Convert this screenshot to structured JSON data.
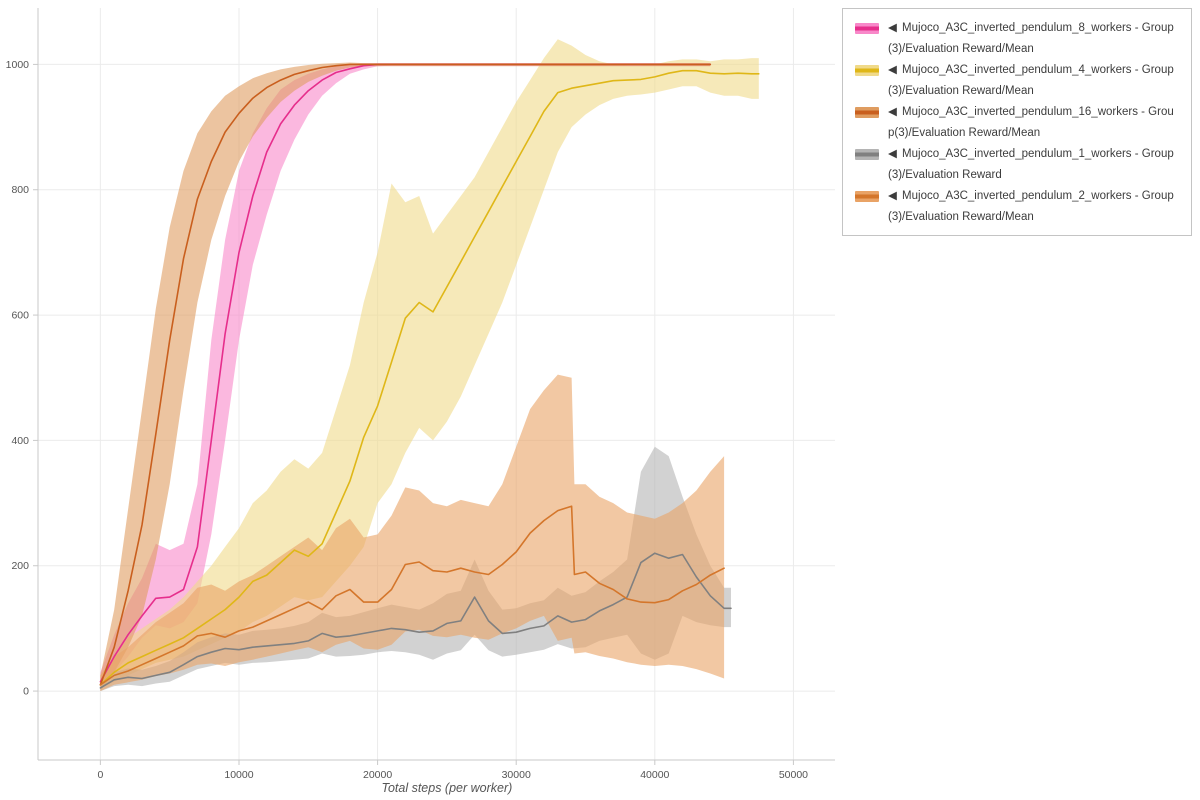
{
  "legend": {
    "toggle_glyph": "◀"
  },
  "chart_data": {
    "type": "line",
    "title": "",
    "xlabel": "Total steps (per worker)",
    "ylabel": "",
    "grid": true,
    "legend_position": "top-right-outside",
    "xlim": [
      -4500,
      53000
    ],
    "ylim": [
      -110,
      1090
    ],
    "x_ticks": [
      0,
      10000,
      20000,
      30000,
      40000,
      50000
    ],
    "x_tick_labels": [
      "0",
      "10000",
      "20000",
      "30000",
      "40000",
      "50000"
    ],
    "y_ticks": [
      0,
      200,
      400,
      600,
      800,
      1000
    ],
    "y_tick_labels": [
      "0",
      "200",
      "400",
      "600",
      "800",
      "1000"
    ],
    "axis_color": "#c9c9c9",
    "grid_color": "#ebebeb",
    "tick_label_color": "#555555",
    "series": [
      {
        "name": "Mujoco_A3C_inverted_pendulum_8_workers - Group(3)/Evaluation Reward/Mean",
        "color": "#e62e8c",
        "band_color": "#f888c9",
        "x": [
          0,
          1000,
          2000,
          3000,
          4000,
          5000,
          6000,
          7000,
          8000,
          9000,
          10000,
          11000,
          12000,
          13000,
          14000,
          15000,
          16000,
          17000,
          18000,
          19000,
          20000,
          21000,
          22000,
          23000,
          24000,
          25000,
          26000,
          27000,
          28000,
          29000,
          30000,
          31000,
          32000,
          33000,
          34000,
          35000,
          36000,
          37000,
          38000,
          39000,
          40000,
          41000,
          42000,
          43000,
          44000
        ],
        "y": [
          15,
          55,
          90,
          120,
          148,
          150,
          162,
          230,
          400,
          570,
          700,
          790,
          860,
          905,
          935,
          958,
          975,
          987,
          993,
          998,
          1000,
          1000,
          1000,
          1000,
          1000,
          1000,
          1000,
          1000,
          1000,
          1000,
          1000,
          1000,
          1000,
          1000,
          1000,
          1000,
          1000,
          1000,
          1000,
          1000,
          1000,
          1000,
          1000,
          1000,
          1000
        ],
        "lower": [
          5,
          30,
          55,
          85,
          105,
          100,
          110,
          140,
          250,
          400,
          560,
          680,
          760,
          830,
          880,
          920,
          950,
          970,
          985,
          992,
          997,
          998,
          998,
          998,
          998,
          998,
          998,
          998,
          998,
          998,
          998,
          998,
          998,
          998,
          998,
          998,
          998,
          998,
          998,
          998,
          998,
          998,
          998,
          998,
          998
        ],
        "upper": [
          30,
          90,
          140,
          180,
          235,
          225,
          235,
          330,
          560,
          720,
          830,
          890,
          930,
          960,
          975,
          985,
          992,
          997,
          1000,
          1002,
          1002,
          1002,
          1002,
          1002,
          1002,
          1002,
          1002,
          1002,
          1002,
          1002,
          1002,
          1002,
          1002,
          1002,
          1002,
          1002,
          1002,
          1002,
          1002,
          1002,
          1002,
          1002,
          1002,
          1002,
          1002
        ]
      },
      {
        "name": "Mujoco_A3C_inverted_pendulum_4_workers - Group(3)/Evaluation Reward/Mean",
        "color": "#dfb718",
        "band_color": "#f0da8a",
        "x": [
          0,
          1000,
          2000,
          3000,
          4000,
          5000,
          6000,
          7000,
          8000,
          9000,
          10000,
          11000,
          12000,
          13000,
          14000,
          15000,
          16000,
          17000,
          18000,
          19000,
          20000,
          21000,
          22000,
          23000,
          24000,
          25000,
          26000,
          27000,
          28000,
          29000,
          30000,
          31000,
          32000,
          33000,
          34000,
          35000,
          36000,
          37000,
          38000,
          39000,
          40000,
          41000,
          42000,
          43000,
          44000,
          45000,
          46000,
          47000,
          47500
        ],
        "y": [
          10,
          30,
          45,
          55,
          65,
          75,
          85,
          100,
          115,
          130,
          150,
          175,
          185,
          205,
          225,
          215,
          235,
          285,
          335,
          405,
          455,
          525,
          595,
          620,
          605,
          645,
          685,
          725,
          765,
          805,
          845,
          885,
          925,
          955,
          962,
          966,
          970,
          974,
          975,
          976,
          980,
          986,
          990,
          990,
          986,
          985,
          986,
          985,
          985
        ],
        "lower": [
          5,
          15,
          25,
          35,
          45,
          50,
          55,
          65,
          75,
          85,
          95,
          110,
          120,
          135,
          150,
          145,
          150,
          175,
          200,
          230,
          300,
          330,
          380,
          420,
          400,
          430,
          470,
          520,
          570,
          620,
          680,
          740,
          800,
          860,
          900,
          920,
          935,
          945,
          950,
          952,
          955,
          960,
          965,
          965,
          955,
          950,
          950,
          945,
          945
        ],
        "upper": [
          25,
          55,
          85,
          100,
          115,
          130,
          150,
          175,
          200,
          230,
          260,
          300,
          320,
          350,
          370,
          355,
          380,
          450,
          520,
          620,
          700,
          810,
          780,
          790,
          730,
          760,
          790,
          820,
          860,
          900,
          940,
          975,
          1010,
          1040,
          1030,
          1015,
          1005,
          1000,
          998,
          998,
          1000,
          1005,
          1008,
          1008,
          1005,
          1008,
          1008,
          1010,
          1010
        ]
      },
      {
        "name": "Mujoco_A3C_inverted_pendulum_16_workers - Group(3)/Evaluation Reward/Mean",
        "color": "#c95f1e",
        "band_color": "#df9c60",
        "x": [
          0,
          1000,
          2000,
          3000,
          4000,
          5000,
          6000,
          7000,
          8000,
          9000,
          10000,
          11000,
          12000,
          13000,
          14000,
          15000,
          16000,
          17000,
          18000,
          19000,
          20000,
          21000,
          22000,
          23000,
          24000,
          25000,
          26000,
          27000,
          28000,
          29000,
          30000,
          31000,
          32000,
          33000,
          34000,
          35000,
          36000,
          37000,
          38000,
          39000,
          40000,
          41000,
          42000,
          43000,
          44000
        ],
        "y": [
          10,
          70,
          160,
          265,
          410,
          560,
          690,
          785,
          845,
          892,
          922,
          946,
          963,
          975,
          984,
          990,
          995,
          998,
          1000,
          1000,
          1000,
          1000,
          1000,
          1000,
          1000,
          1000,
          1000,
          1000,
          1000,
          1000,
          1000,
          1000,
          1000,
          1000,
          1000,
          1000,
          1000,
          1000,
          1000,
          1000,
          1000,
          1000,
          1000,
          1000,
          1000
        ],
        "lower": [
          0,
          30,
          70,
          120,
          210,
          330,
          480,
          620,
          720,
          790,
          845,
          885,
          915,
          940,
          958,
          972,
          982,
          990,
          995,
          997,
          997,
          997,
          997,
          997,
          997,
          997,
          997,
          997,
          997,
          997,
          997,
          997,
          997,
          997,
          997,
          997,
          997,
          997,
          997,
          997,
          997,
          997,
          997,
          997,
          997
        ],
        "upper": [
          25,
          130,
          290,
          450,
          610,
          740,
          830,
          890,
          925,
          950,
          965,
          978,
          986,
          992,
          996,
          999,
          1001,
          1002,
          1003,
          1002,
          1002,
          1002,
          1002,
          1002,
          1002,
          1002,
          1002,
          1002,
          1002,
          1002,
          1002,
          1002,
          1002,
          1002,
          1002,
          1002,
          1002,
          1002,
          1002,
          1002,
          1002,
          1002,
          1002,
          1002,
          1002
        ]
      },
      {
        "name": "Mujoco_A3C_inverted_pendulum_1_workers - Group(3)/Evaluation Reward",
        "color": "#808080",
        "band_color": "#b4b4b4",
        "x": [
          0,
          1000,
          2000,
          3000,
          4000,
          5000,
          6000,
          7000,
          8000,
          9000,
          10000,
          11000,
          12000,
          13000,
          14000,
          15000,
          16000,
          17000,
          18000,
          19000,
          20000,
          21000,
          22000,
          23000,
          24000,
          25000,
          26000,
          27000,
          28000,
          29000,
          30000,
          31000,
          32000,
          33000,
          34000,
          35000,
          36000,
          37000,
          38000,
          39000,
          40000,
          41000,
          42000,
          43000,
          44000,
          45000,
          45500
        ],
        "y": [
          5,
          18,
          22,
          20,
          25,
          30,
          42,
          55,
          62,
          68,
          66,
          70,
          72,
          74,
          76,
          80,
          92,
          86,
          88,
          92,
          96,
          100,
          98,
          94,
          96,
          108,
          112,
          150,
          112,
          92,
          94,
          100,
          104,
          120,
          110,
          114,
          128,
          138,
          150,
          205,
          220,
          212,
          218,
          182,
          152,
          132,
          132
        ],
        "lower": [
          0,
          8,
          10,
          8,
          12,
          15,
          25,
          35,
          40,
          45,
          42,
          45,
          46,
          48,
          50,
          52,
          60,
          55,
          56,
          58,
          62,
          64,
          62,
          58,
          50,
          60,
          65,
          90,
          65,
          55,
          58,
          62,
          66,
          75,
          68,
          70,
          80,
          85,
          90,
          60,
          50,
          60,
          120,
          110,
          105,
          102,
          102
        ],
        "upper": [
          12,
          30,
          36,
          34,
          40,
          48,
          62,
          78,
          86,
          92,
          90,
          96,
          98,
          100,
          104,
          110,
          125,
          118,
          120,
          126,
          132,
          138,
          134,
          130,
          140,
          155,
          160,
          210,
          160,
          130,
          132,
          140,
          145,
          165,
          152,
          158,
          175,
          190,
          210,
          350,
          390,
          375,
          310,
          250,
          200,
          165,
          165
        ]
      },
      {
        "name": "Mujoco_A3C_inverted_pendulum_2_workers - Group(3)/Evaluation Reward/Mean",
        "color": "#d4762b",
        "band_color": "#e9a366",
        "x": [
          0,
          1000,
          2000,
          3000,
          4000,
          5000,
          6000,
          7000,
          8000,
          9000,
          10000,
          11000,
          12000,
          13000,
          14000,
          15000,
          16000,
          17000,
          18000,
          19000,
          20000,
          21000,
          22000,
          23000,
          24000,
          25000,
          26000,
          27000,
          28000,
          29000,
          30000,
          31000,
          32000,
          33000,
          34000,
          34200,
          35000,
          36000,
          37000,
          38000,
          39000,
          40000,
          41000,
          42000,
          43000,
          44000,
          45000
        ],
        "y": [
          10,
          25,
          32,
          42,
          52,
          62,
          72,
          88,
          92,
          86,
          96,
          102,
          112,
          122,
          132,
          142,
          130,
          152,
          162,
          142,
          142,
          162,
          202,
          206,
          192,
          190,
          196,
          190,
          186,
          202,
          222,
          252,
          272,
          288,
          295,
          186,
          190,
          172,
          162,
          147,
          142,
          141,
          146,
          160,
          170,
          185,
          196
        ],
        "lower": [
          0,
          10,
          14,
          18,
          24,
          28,
          34,
          42,
          44,
          40,
          46,
          50,
          55,
          60,
          65,
          70,
          62,
          74,
          80,
          68,
          66,
          74,
          95,
          98,
          88,
          86,
          90,
          85,
          82,
          92,
          100,
          112,
          120,
          80,
          85,
          60,
          62,
          56,
          52,
          46,
          42,
          40,
          42,
          40,
          35,
          28,
          20
        ],
        "upper": [
          25,
          55,
          70,
          90,
          110,
          125,
          140,
          165,
          170,
          160,
          175,
          185,
          200,
          215,
          230,
          245,
          225,
          260,
          275,
          245,
          250,
          280,
          325,
          320,
          300,
          295,
          305,
          300,
          295,
          330,
          390,
          450,
          480,
          505,
          500,
          330,
          330,
          310,
          300,
          285,
          280,
          275,
          285,
          300,
          320,
          350,
          375
        ]
      }
    ]
  }
}
